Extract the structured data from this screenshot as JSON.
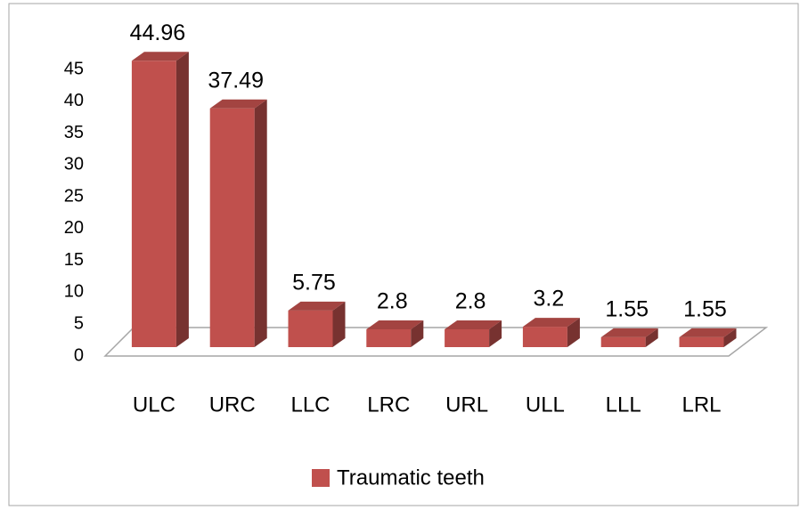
{
  "chart_data": {
    "type": "bar3d",
    "categories": [
      "ULC",
      "URC",
      "LLC",
      "LRC",
      "URL",
      "ULL",
      "LLL",
      "LRL"
    ],
    "series": [
      {
        "name": "Traumatic teeth",
        "color": "#c0504d",
        "values": [
          44.96,
          37.49,
          5.75,
          2.8,
          2.8,
          3.2,
          1.55,
          1.55
        ]
      }
    ],
    "ylim": [
      0,
      45
    ],
    "yticks": [
      0,
      5,
      10,
      15,
      20,
      25,
      30,
      35,
      40,
      45
    ],
    "legend": "bottom"
  }
}
